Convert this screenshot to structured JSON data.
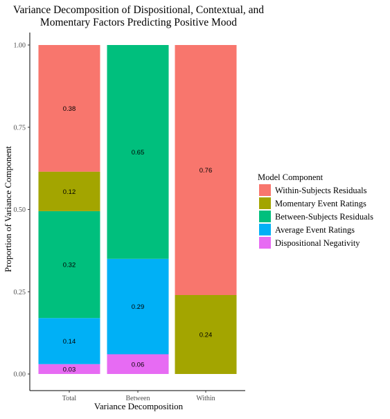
{
  "chart_data": {
    "type": "bar",
    "stacked": true,
    "title_lines": [
      "Variance Decomposition of Dispositional, Contextual, and",
      "Momentary Factors Predicting Positive Mood"
    ],
    "xlabel": "Variance Decomposition",
    "ylabel": "Proportion of Variance Component",
    "categories": [
      "Total",
      "Between",
      "Within"
    ],
    "ylim": [
      0,
      1
    ],
    "yticks": [
      "0.00",
      "0.25",
      "0.50",
      "0.75",
      "1.00"
    ],
    "grid": false,
    "legend": {
      "title": "Model Component",
      "position": "right"
    },
    "series": [
      {
        "name": "Dispositional Negativity",
        "color": "#E76BF3",
        "values": [
          0.03,
          0.06,
          0
        ],
        "labels": [
          "0.03",
          "0.06",
          ""
        ]
      },
      {
        "name": "Average Event Ratings",
        "color": "#00B0F6",
        "values": [
          0.14,
          0.29,
          0
        ],
        "labels": [
          "0.14",
          "0.29",
          ""
        ]
      },
      {
        "name": "Between-Subjects Residuals",
        "color": "#00BF7D",
        "values": [
          0.325,
          0.65,
          0
        ],
        "labels": [
          "0.32",
          "0.65",
          ""
        ]
      },
      {
        "name": "Momentary Event Ratings",
        "color": "#A3A500",
        "values": [
          0.12,
          0,
          0.24
        ],
        "labels": [
          "0.12",
          "",
          "0.24"
        ]
      },
      {
        "name": "Within-Subjects Residuals",
        "color": "#F8766D",
        "values": [
          0.385,
          0,
          0.76
        ],
        "labels": [
          "0.38",
          "",
          "0.76"
        ]
      }
    ],
    "legend_order": [
      "Within-Subjects Residuals",
      "Momentary Event Ratings",
      "Between-Subjects Residuals",
      "Average Event Ratings",
      "Dispositional Negativity"
    ]
  }
}
